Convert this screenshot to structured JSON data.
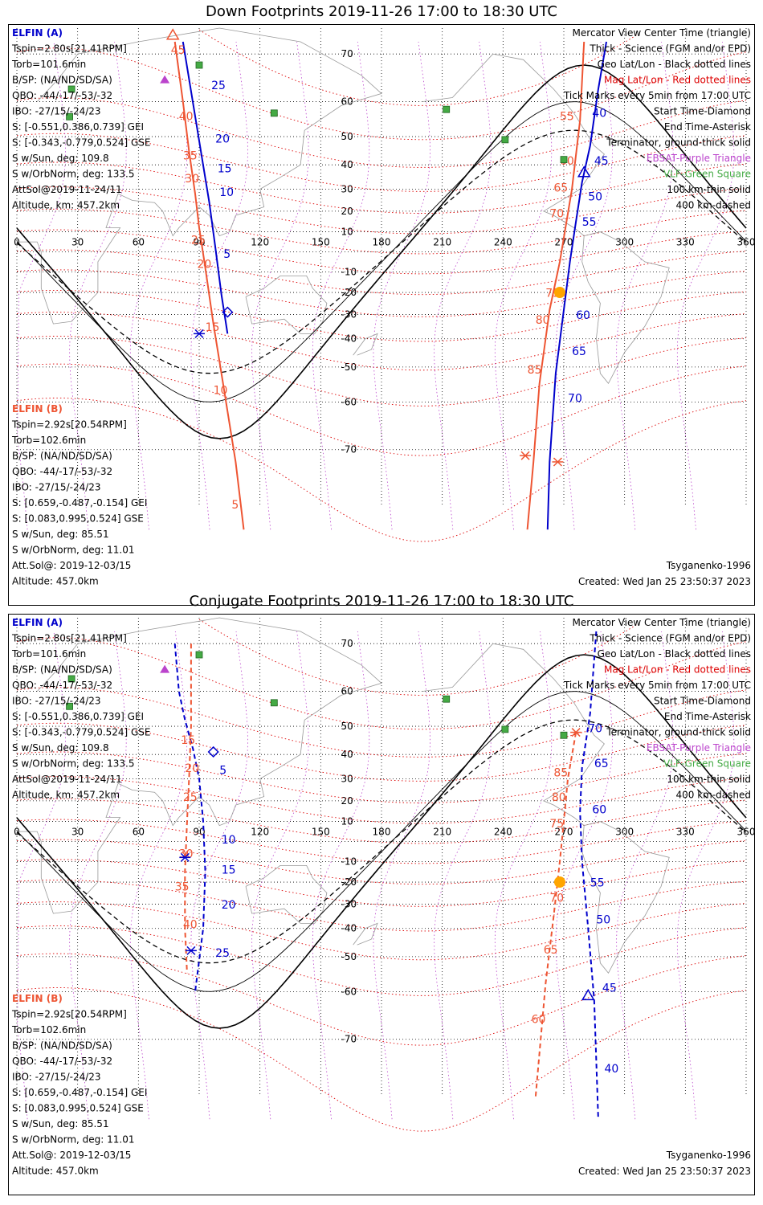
{
  "colors": {
    "elfin_a": "#0000cc",
    "elfin_b": "#ee5533",
    "mag_grid": "#dd0000",
    "geo_grid": "#000000",
    "ebsat": "#bb44cc",
    "vlf": "#44aa44",
    "coast": "#999999",
    "sun": "#ffa500"
  },
  "panels": [
    {
      "title": "Down Footprints 2019-11-26 17:00 to 18:30 UTC",
      "mode": "down",
      "left_info_a": [
        {
          "text": "ELFIN (A)",
          "color": "#0000cc"
        },
        {
          "text": "Tspin=2.80s[21.41RPM]"
        },
        {
          "text": "Torb=101.6min"
        },
        {
          "text": "B/SP: (NA/ND/SD/SA)"
        },
        {
          "text": "QBO: -44/-17/-53/-32"
        },
        {
          "text": "IBO: -27/15/-24/23"
        },
        {
          "text": "S: [-0.551,0.386,0.739] GEI"
        },
        {
          "text": "S: [-0.343,-0.779,0.524] GSE"
        },
        {
          "text": "S w/Sun, deg: 109.8"
        },
        {
          "text": "S w/OrbNorm, deg: 133.5"
        },
        {
          "text": "AttSol@2019-11-24/11"
        },
        {
          "text": "Altitude, km: 457.2km"
        }
      ],
      "left_info_b": [
        {
          "text": "ELFIN (B)",
          "color": "#ee5533"
        },
        {
          "text": "Tspin=2.92s[20.54RPM]"
        },
        {
          "text": "Torb=102.6min"
        },
        {
          "text": "B/SP: (NA/ND/SD/SA)"
        },
        {
          "text": "QBO: -44/-17/-53/-32"
        },
        {
          "text": "IBO: -27/15/-24/23"
        },
        {
          "text": "S: [0.659,-0.487,-0.154] GEI"
        },
        {
          "text": "S: [0.083,0.995,0.524] GSE"
        },
        {
          "text": "S w/Sun, deg: 85.51"
        },
        {
          "text": "S w/OrbNorm, deg: 11.01"
        },
        {
          "text": "Att.Sol@: 2019-12-03/15"
        },
        {
          "text": "Altitude: 457.0km"
        }
      ],
      "legend": [
        {
          "text": "Mercator View Center Time (triangle)",
          "color": "#000000"
        },
        {
          "text": "Thick - Science (FGM and/or EPD)",
          "color": "#000000"
        },
        {
          "text": "Geo Lat/Lon - Black dotted lines",
          "color": "#000000"
        },
        {
          "text": "Mag Lat/Lon - Red dotted lines",
          "color": "#dd0000"
        },
        {
          "text": "Tick Marks every 5min from 17:00 UTC",
          "color": "#000000"
        },
        {
          "text": "Start Time-Diamond",
          "color": "#000000"
        },
        {
          "text": "End Time-Asterisk",
          "color": "#000000"
        },
        {
          "text": "Terminator, ground-thick solid",
          "color": "#000000"
        },
        {
          "text": "EBSAT-Purple Triangle",
          "color": "#bb44cc"
        },
        {
          "text": "VLF-Green Square",
          "color": "#44aa44"
        },
        {
          "text": "100 km-thin solid",
          "color": "#000000"
        },
        {
          "text": "400 km-dashed",
          "color": "#000000"
        }
      ],
      "footer_left": "",
      "footer_right_model": "Tsyganenko-1996",
      "footer_right_created": "Created: Wed Jan 25 23:50:37 2023",
      "lon_ticks": [
        "0",
        "30",
        "60",
        "90",
        "120",
        "150",
        "180",
        "210",
        "240",
        "270",
        "300",
        "330",
        "360"
      ],
      "lat_ticks": [
        "70",
        "60",
        "50",
        "40",
        "30",
        "20",
        "10",
        "-10",
        "-20",
        "-30",
        "-40",
        "-50",
        "-60",
        "-70"
      ],
      "track_a_west": {
        "pts": [
          [
            82,
            72
          ],
          [
            95,
            24
          ],
          [
            98,
            2
          ],
          [
            101,
            -21
          ],
          [
            104,
            -38
          ]
        ],
        "labels": [
          [
            "25",
            96,
            63
          ],
          [
            "20",
            98,
            48
          ],
          [
            "15",
            99,
            37
          ],
          [
            "10",
            100,
            27
          ],
          [
            "5",
            102,
            -3
          ]
        ],
        "start": [
          104,
          -29
        ],
        "dashed": false
      },
      "track_a_east": {
        "pts": [
          [
            291,
            72
          ],
          [
            287,
            63
          ],
          [
            283,
            47
          ],
          [
            279,
            33
          ],
          [
            276,
            15
          ],
          [
            273,
            -5
          ],
          [
            270,
            -28
          ],
          [
            266,
            -52
          ],
          [
            263,
            -72
          ],
          [
            262,
            -80
          ]
        ],
        "labels": [
          [
            "40",
            284,
            56
          ],
          [
            "45",
            285,
            40
          ],
          [
            "50",
            282,
            25
          ],
          [
            "55",
            279,
            13
          ],
          [
            "60",
            276,
            -32
          ],
          [
            "65",
            274,
            -46
          ],
          [
            "70",
            272,
            -60
          ]
        ],
        "end": [
          267,
          -72
        ],
        "center": [
          280,
          37
        ],
        "dashed": false
      },
      "track_a_start": [
        98,
        -27
      ],
      "track_b_west": {
        "pts": [
          [
            78,
            72
          ],
          [
            82,
            60
          ],
          [
            85,
            45
          ],
          [
            88,
            28
          ],
          [
            90,
            12
          ],
          [
            93,
            -8
          ],
          [
            97,
            -34
          ],
          [
            101,
            -52
          ],
          [
            108,
            -72
          ],
          [
            112,
            -80
          ]
        ],
        "labels": [
          [
            "45",
            76,
            70
          ],
          [
            "40",
            80,
            55
          ],
          [
            "35",
            82,
            42
          ],
          [
            "30",
            83,
            33
          ],
          [
            "25",
            86,
            4
          ],
          [
            "20",
            89,
            -8
          ],
          [
            "15",
            93,
            -37
          ],
          [
            "10",
            97,
            -58
          ],
          [
            "5",
            106,
            -78
          ]
        ],
        "end_b": [
          90,
          -38
        ],
        "dashed": false
      },
      "track_b_east": {
        "pts": [
          [
            280,
            72
          ],
          [
            278,
            55
          ],
          [
            274,
            30
          ],
          [
            268,
            -5
          ],
          [
            263,
            -28
          ],
          [
            258,
            -55
          ],
          [
            255,
            -72
          ],
          [
            252,
            -80
          ]
        ],
        "labels": [
          [
            "55",
            268,
            55
          ],
          [
            "60",
            268,
            40
          ],
          [
            "65",
            265,
            29
          ],
          [
            "70",
            263,
            17
          ],
          [
            "75",
            261,
            -22
          ],
          [
            "80",
            256,
            -34
          ],
          [
            "85",
            252,
            -52
          ]
        ],
        "center": [
          77,
          73
        ],
        "end": [
          251,
          -71
        ],
        "dashed": false
      },
      "sun_pt": [
        268,
        -20
      ],
      "ebsat": [
        [
          73,
          65
        ]
      ],
      "vlf": [
        [
          90,
          68
        ],
        [
          26,
          56
        ],
        [
          27,
          63
        ],
        [
          127,
          57
        ],
        [
          212,
          58
        ],
        [
          241,
          49
        ],
        [
          270,
          42
        ]
      ]
    },
    {
      "title": "Conjugate Footprints 2019-11-26 17:00 to 18:30 UTC",
      "mode": "conj",
      "left_info_a": [
        {
          "text": "ELFIN (A)",
          "color": "#0000cc"
        },
        {
          "text": "Tspin=2.80s[21.41RPM]"
        },
        {
          "text": "Torb=101.6min"
        },
        {
          "text": "B/SP: (NA/ND/SD/SA)"
        },
        {
          "text": "QBO: -44/-17/-53/-32"
        },
        {
          "text": "IBO: -27/15/-24/23"
        },
        {
          "text": "S: [-0.551,0.386,0.739] GEI"
        },
        {
          "text": "S: [-0.343,-0.779,0.524] GSE"
        },
        {
          "text": "S w/Sun, deg: 109.8"
        },
        {
          "text": "S w/OrbNorm, deg: 133.5"
        },
        {
          "text": "AttSol@2019-11-24/11"
        },
        {
          "text": "Altitude, km: 457.2km"
        }
      ],
      "left_info_b": [
        {
          "text": "ELFIN (B)",
          "color": "#ee5533"
        },
        {
          "text": "Tspin=2.92s[20.54RPM]"
        },
        {
          "text": "Torb=102.6min"
        },
        {
          "text": "B/SP: (NA/ND/SD/SA)"
        },
        {
          "text": "QBO: -44/-17/-53/-32"
        },
        {
          "text": "IBO: -27/15/-24/23"
        },
        {
          "text": "S: [0.659,-0.487,-0.154] GEI"
        },
        {
          "text": "S: [0.083,0.995,0.524] GSE"
        },
        {
          "text": "S w/Sun, deg: 85.51"
        },
        {
          "text": "S w/OrbNorm, deg: 11.01"
        },
        {
          "text": "Att.Sol@: 2019-12-03/15"
        },
        {
          "text": "Altitude: 457.0km"
        }
      ],
      "legend": [
        {
          "text": "Mercator View Center Time (triangle)",
          "color": "#000000"
        },
        {
          "text": "Thick - Science (FGM and/or EPD)",
          "color": "#000000"
        },
        {
          "text": "Geo Lat/Lon - Black dotted lines",
          "color": "#000000"
        },
        {
          "text": "Mag Lat/Lon - Red dotted lines",
          "color": "#dd0000"
        },
        {
          "text": "Tick Marks every 5min from 17:00 UTC",
          "color": "#000000"
        },
        {
          "text": "Start Time-Diamond",
          "color": "#000000"
        },
        {
          "text": "End Time-Asterisk",
          "color": "#000000"
        },
        {
          "text": "Terminator, ground-thick solid",
          "color": "#000000"
        },
        {
          "text": "EBSAT-Purple Triangle",
          "color": "#bb44cc"
        },
        {
          "text": "VLF-Green Square",
          "color": "#44aa44"
        },
        {
          "text": "100 km-thin solid",
          "color": "#000000"
        },
        {
          "text": "400 km-dashed",
          "color": "#000000"
        }
      ],
      "footer_right_model": "Tsyganenko-1996",
      "footer_right_created": "Created: Wed Jan 25 23:50:37 2023",
      "lon_ticks": [
        "0",
        "30",
        "60",
        "90",
        "120",
        "150",
        "180",
        "210",
        "240",
        "270",
        "300",
        "330",
        "360"
      ],
      "lat_ticks": [
        "70",
        "60",
        "50",
        "40",
        "30",
        "20",
        "10",
        "-10",
        "-20",
        "-30",
        "-40",
        "-50",
        "-60",
        "-70"
      ],
      "track_a_west": {
        "pts": [
          [
            78,
            70
          ],
          [
            80,
            60
          ],
          [
            83,
            52
          ],
          [
            87,
            42
          ],
          [
            90,
            30
          ],
          [
            92,
            10
          ],
          [
            93,
            -15
          ],
          [
            92,
            -40
          ],
          [
            88,
            -60
          ]
        ],
        "labels": [
          [
            "5",
            100,
            32
          ],
          [
            "10",
            101,
            -1
          ],
          [
            "15",
            101,
            -16
          ],
          [
            "20",
            101,
            -32
          ],
          [
            "25",
            98,
            -50
          ]
        ],
        "start": [
          97,
          41
        ],
        "end": [
          83,
          -8
        ],
        "dashed": true
      },
      "track_a_east": {
        "pts": [
          [
            286,
            72
          ],
          [
            283,
            54
          ],
          [
            279,
            35
          ],
          [
            278,
            15
          ],
          [
            279,
            -10
          ],
          [
            282,
            -40
          ],
          [
            285,
            -62
          ],
          [
            287,
            -80
          ]
        ],
        "labels": [
          [
            "70",
            282,
            48
          ],
          [
            "65",
            285,
            35
          ],
          [
            "60",
            284,
            14
          ],
          [
            "55",
            283,
            -22
          ],
          [
            "50",
            286,
            -38
          ],
          [
            "45",
            289,
            -60
          ],
          [
            "40",
            290,
            -75
          ]
        ],
        "center": [
          282,
          -61
        ],
        "dashed": true
      },
      "track_a_start": [
        0,
        0
      ],
      "track_b_west": {
        "pts": [
          [
            86,
            70
          ],
          [
            86,
            50
          ],
          [
            85,
            30
          ],
          [
            84,
            10
          ],
          [
            83,
            -15
          ],
          [
            83,
            -40
          ],
          [
            84,
            -55
          ]
        ],
        "labels": [
          [
            "15",
            81,
            44
          ],
          [
            "20",
            83,
            33
          ],
          [
            "25",
            82,
            20
          ],
          [
            "30",
            80,
            -8
          ],
          [
            "35",
            78,
            -24
          ],
          [
            "40",
            82,
            -40
          ]
        ],
        "end_b": [
          86,
          -48
        ],
        "dashed": true
      },
      "track_b_east": {
        "pts": [
          [
            276,
            48
          ],
          [
            272,
            30
          ],
          [
            270,
            10
          ],
          [
            268,
            -10
          ],
          [
            265,
            -35
          ],
          [
            261,
            -58
          ],
          [
            256,
            -78
          ]
        ],
        "labels": [
          [
            "85",
            265,
            31
          ],
          [
            "80",
            264,
            20
          ],
          [
            "75",
            263,
            7
          ],
          [
            "70",
            263,
            -29
          ],
          [
            "65",
            260,
            -49
          ],
          [
            "60",
            254,
            -67
          ]
        ],
        "end": [
          276,
          48
        ],
        "dashed": true
      },
      "sun_pt": [
        268,
        -20
      ],
      "ebsat": [
        [
          73,
          65
        ]
      ],
      "vlf": [
        [
          90,
          68
        ],
        [
          26,
          56
        ],
        [
          27,
          63
        ],
        [
          127,
          57
        ],
        [
          212,
          58
        ],
        [
          241,
          49
        ],
        [
          270,
          47
        ]
      ]
    }
  ]
}
